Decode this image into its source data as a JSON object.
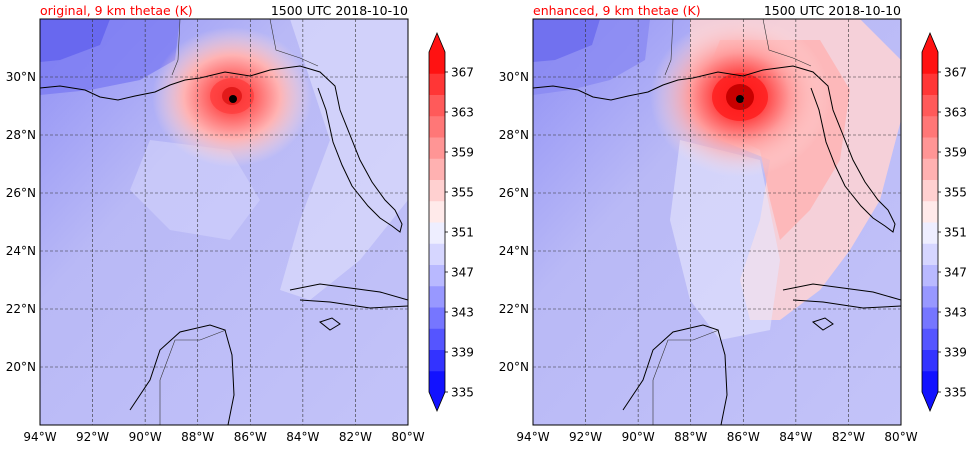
{
  "panels": [
    {
      "id": "original",
      "title_left": "original, 9 km thetae (K)",
      "title_right": "1500 UTC 2018-10-10",
      "title_left_color": "#ff0000",
      "storm_center": {
        "lon": -86.6,
        "lat": 29.35
      }
    },
    {
      "id": "enhanced",
      "title_left": "enhanced, 9 km thetae (K)",
      "title_right": "1500 UTC 2018-10-10",
      "title_left_color": "#ff0000",
      "storm_center": {
        "lon": -86.0,
        "lat": 29.35
      }
    }
  ],
  "map_extent": {
    "lon_min": -94,
    "lon_max": -80,
    "lat_min": 18,
    "lat_max": 32
  },
  "x_ticks": [
    "94°W",
    "92°W",
    "90°W",
    "88°W",
    "86°W",
    "84°W",
    "82°W",
    "80°W"
  ],
  "y_ticks": [
    "20°N",
    "22°N",
    "24°N",
    "26°N",
    "28°N",
    "30°N"
  ],
  "colorbar": {
    "labels": [
      "335",
      "339",
      "343",
      "347",
      "351",
      "355",
      "359",
      "363",
      "367"
    ],
    "levels_min": 335,
    "levels_max": 369,
    "colors": [
      "#1212ff",
      "#3333ff",
      "#5555ff",
      "#7676ff",
      "#9898ff",
      "#b9b9ff",
      "#d6d6ff",
      "#eeeeff",
      "#ffeaea",
      "#ffd0d0",
      "#ffb1b1",
      "#ff9595",
      "#ff7777",
      "#ff5a5a",
      "#ff3636",
      "#ff1212"
    ]
  },
  "colors": {
    "ocean_blue": "#c8c8ff",
    "storm_red": "#e02020"
  }
}
